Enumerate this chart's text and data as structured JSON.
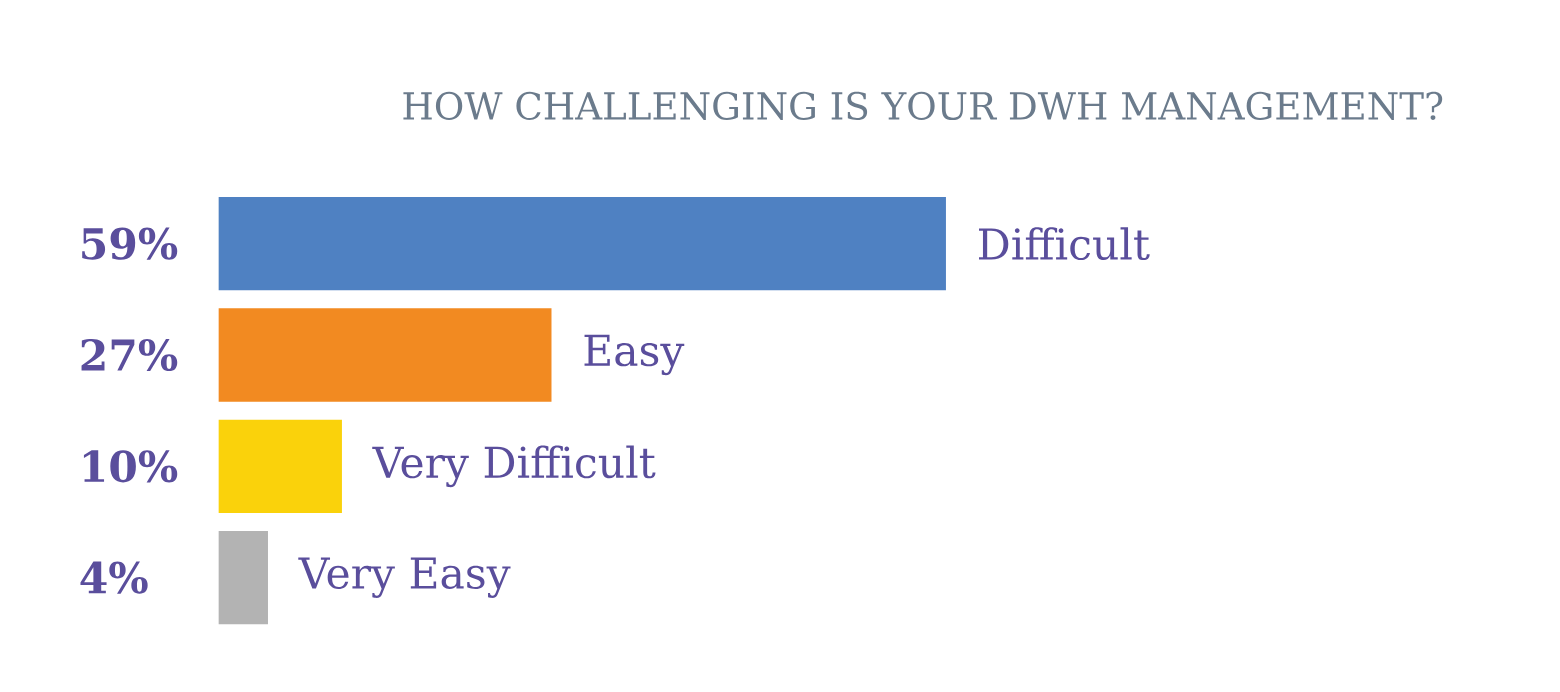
{
  "chart_data": {
    "type": "bar",
    "orientation": "horizontal",
    "title": "HOW CHALLENGING IS YOUR DWH MANAGEMENT?",
    "categories": [
      "Difficult",
      "Easy",
      "Very Difficult",
      "Very Easy"
    ],
    "values": [
      59,
      27,
      10,
      4
    ],
    "colors": [
      "#4f81c2",
      "#f28a21",
      "#fad20b",
      "#b3b3b3"
    ],
    "value_labels": [
      "59%",
      "27%",
      "10%",
      "4%"
    ]
  }
}
